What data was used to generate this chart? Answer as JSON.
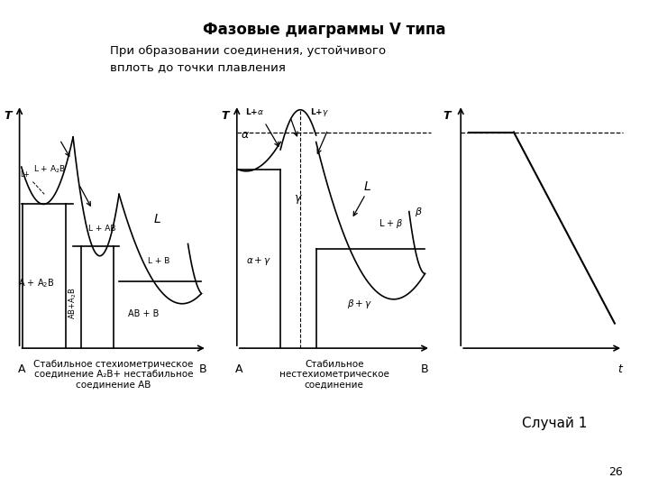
{
  "title": "Фазовые диаграммы V типа",
  "subtitle": "При образовании соединения, устойчивого\nвплоть до точки плавления",
  "subtitle_bg": "#00FF00",
  "bg_color": "#FFFFFF",
  "caption1": "Стабильное стехиометрическое\nсоединение A₂B+ нестабильное\nсоединение AB",
  "caption2": "Стабильное\nнестехиометрическое\nсоединение",
  "caption3": "Случай 1",
  "page_num": "26"
}
